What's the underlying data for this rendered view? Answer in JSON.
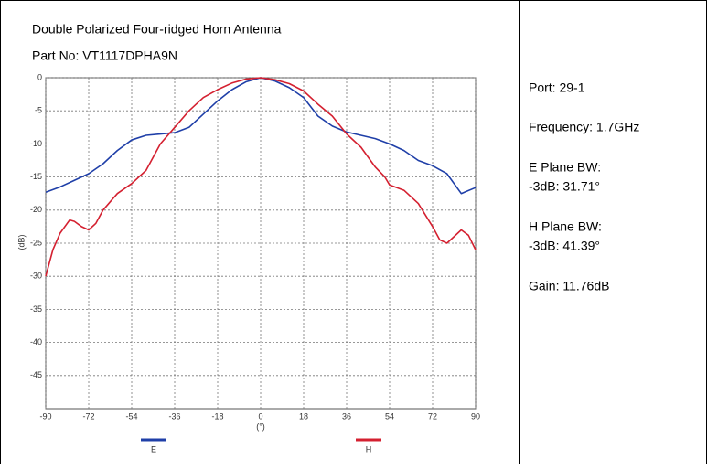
{
  "title": "Double Polarized Four-ridged Horn Antenna",
  "part_no": "Part No: VT1117DPHA9N",
  "info": [
    "Port: 29-1",
    "Frequency: 1.7GHz",
    "E Plane BW:",
    "-3dB: 31.71°",
    "H Plane BW:",
    "-3dB: 41.39°",
    "Gain: 11.76dB"
  ],
  "chart_data": {
    "type": "line",
    "xlabel": "(°)",
    "ylabel": "(dB)",
    "xlim": [
      -90,
      90
    ],
    "ylim": [
      -50,
      0
    ],
    "xticks": [
      -90,
      -72,
      -54,
      -36,
      -18,
      0,
      18,
      36,
      54,
      72,
      90
    ],
    "yticks": [
      0,
      -5,
      -10,
      -15,
      -20,
      -25,
      -30,
      -35,
      -40,
      -45
    ],
    "grid": true,
    "series": [
      {
        "name": "E",
        "color": "#1f3fa8",
        "x": [
          -90,
          -84,
          -78,
          -72,
          -66,
          -60,
          -54,
          -48,
          -42,
          -36,
          -30,
          -24,
          -18,
          -12,
          -6,
          0,
          6,
          12,
          18,
          24,
          30,
          36,
          42,
          48,
          54,
          60,
          66,
          72,
          78,
          84,
          90
        ],
        "values": [
          -17.3,
          -16.5,
          -15.5,
          -14.5,
          -13,
          -11,
          -9.4,
          -8.7,
          -8.5,
          -8.3,
          -7.5,
          -5.5,
          -3.5,
          -1.8,
          -0.6,
          0,
          -0.5,
          -1.5,
          -3,
          -5.8,
          -7.3,
          -8.2,
          -8.7,
          -9.2,
          -10,
          -11,
          -12.5,
          -13.3,
          -14.5,
          -17.5,
          -16.6
        ]
      },
      {
        "name": "H",
        "color": "#d42030",
        "x": [
          -90,
          -87,
          -84,
          -80,
          -78,
          -75,
          -72,
          -69,
          -66,
          -60,
          -54,
          -48,
          -42,
          -36,
          -30,
          -24,
          -18,
          -12,
          -6,
          0,
          6,
          12,
          18,
          24,
          30,
          36,
          42,
          48,
          52,
          54,
          60,
          66,
          72,
          75,
          78,
          81,
          84,
          87,
          90
        ],
        "values": [
          -30,
          -26,
          -23.5,
          -21.5,
          -21.7,
          -22.5,
          -23,
          -22,
          -20,
          -17.5,
          -16,
          -14,
          -10,
          -7.5,
          -5,
          -3,
          -1.8,
          -0.8,
          -0.2,
          0,
          -0.3,
          -0.9,
          -2,
          -4,
          -5.8,
          -8.5,
          -10.5,
          -13.5,
          -15,
          -16.2,
          -17,
          -19,
          -22.5,
          -24.5,
          -25,
          -24,
          -23,
          -23.8,
          -26
        ]
      }
    ]
  }
}
